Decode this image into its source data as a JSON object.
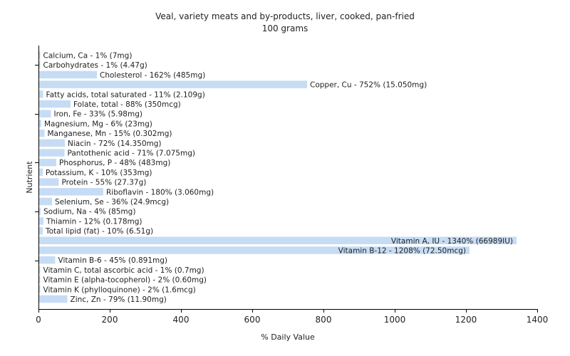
{
  "chart_data": {
    "type": "bar",
    "orientation": "horizontal",
    "title": "Veal, variety meats and by-products, liver, cooked, pan-fried",
    "subtitle": "100 grams",
    "xlabel": "% Daily Value",
    "ylabel": "Nutrient",
    "xlim": [
      0,
      1400
    ],
    "xticks": [
      "0",
      "200",
      "400",
      "600",
      "800",
      "1000",
      "1200",
      "1400"
    ],
    "bar_color": "#c6dcf5",
    "grid": false,
    "categories": [
      "Calcium, Ca",
      "Carbohydrates",
      "Cholesterol",
      "Copper, Cu",
      "Fatty acids, total saturated",
      "Folate, total",
      "Iron, Fe",
      "Magnesium, Mg",
      "Manganese, Mn",
      "Niacin",
      "Pantothenic acid",
      "Phosphorus, P",
      "Potassium, K",
      "Protein",
      "Riboflavin",
      "Selenium, Se",
      "Sodium, Na",
      "Thiamin",
      "Total lipid (fat)",
      "Vitamin A, IU",
      "Vitamin B-12",
      "Vitamin B-6",
      "Vitamin C, total ascorbic acid",
      "Vitamin E (alpha-tocopherol)",
      "Vitamin K (phylloquinone)",
      "Zinc, Zn"
    ],
    "values": [
      1,
      1,
      162,
      752,
      11,
      88,
      33,
      6,
      15,
      72,
      71,
      48,
      10,
      55,
      180,
      36,
      4,
      12,
      10,
      1340,
      1208,
      45,
      1,
      2,
      2,
      79
    ],
    "labels": [
      "Calcium, Ca - 1% (7mg)",
      "Carbohydrates - 1% (4.47g)",
      "Cholesterol - 162% (485mg)",
      "Copper, Cu - 752% (15.050mg)",
      "Fatty acids, total saturated - 11% (2.109g)",
      "Folate, total - 88% (350mcg)",
      "Iron, Fe - 33% (5.98mg)",
      "Magnesium, Mg - 6% (23mg)",
      "Manganese, Mn - 15% (0.302mg)",
      "Niacin - 72% (14.350mg)",
      "Pantothenic acid - 71% (7.075mg)",
      "Phosphorus, P - 48% (483mg)",
      "Potassium, K - 10% (353mg)",
      "Protein - 55% (27.37g)",
      "Riboflavin - 180% (3.060mg)",
      "Selenium, Se - 36% (24.9mcg)",
      "Sodium, Na - 4% (85mg)",
      "Thiamin - 12% (0.178mg)",
      "Total lipid (fat) - 10% (6.51g)",
      "Vitamin A, IU - 1340% (66989IU)",
      "Vitamin B-12 - 1208% (72.50mcg)",
      "Vitamin B-6 - 45% (0.891mg)",
      "Vitamin C, total ascorbic acid - 1% (0.7mg)",
      "Vitamin E (alpha-tocopherol) - 2% (0.60mg)",
      "Vitamin K (phylloquinone) - 2% (1.6mcg)",
      "Zinc, Zn - 79% (11.90mg)"
    ]
  }
}
